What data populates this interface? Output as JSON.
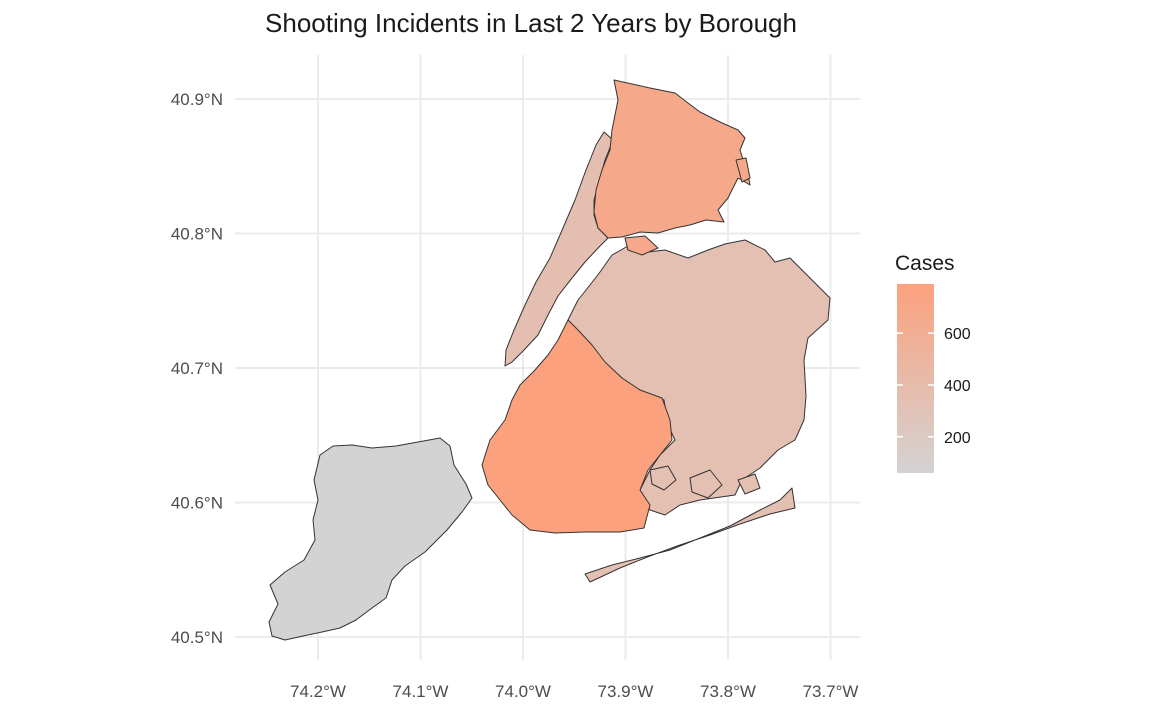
{
  "title": "Shooting Incidents in Last 2 Years by Borough",
  "chart_data": {
    "type": "choropleth",
    "title": "Shooting Incidents in Last 2 Years by Borough",
    "x_axis": {
      "ticks": [
        -74.2,
        -74.1,
        -74.0,
        -73.9,
        -73.8,
        -73.7
      ],
      "tick_labels": [
        "74.2°W",
        "74.1°W",
        "74.0°W",
        "73.9°W",
        "73.8°W",
        "73.7°W"
      ]
    },
    "y_axis": {
      "ticks": [
        40.5,
        40.6,
        40.7,
        40.8,
        40.9
      ],
      "tick_labels": [
        "40.5°N",
        "40.6°N",
        "40.7°N",
        "40.8°N",
        "40.9°N"
      ]
    },
    "grid": true,
    "legend": {
      "title": "Cases",
      "position": "right",
      "ticks": [
        200,
        400,
        600
      ],
      "range": [
        60,
        790
      ],
      "low_color": "#d3d3d3",
      "high_color": "#fca17d"
    },
    "regions": [
      {
        "name": "Staten Island",
        "value": 60
      },
      {
        "name": "Manhattan",
        "value": 360
      },
      {
        "name": "Queens",
        "value": 340
      },
      {
        "name": "Bronx",
        "value": 680
      },
      {
        "name": "Brooklyn",
        "value": 790
      }
    ]
  }
}
